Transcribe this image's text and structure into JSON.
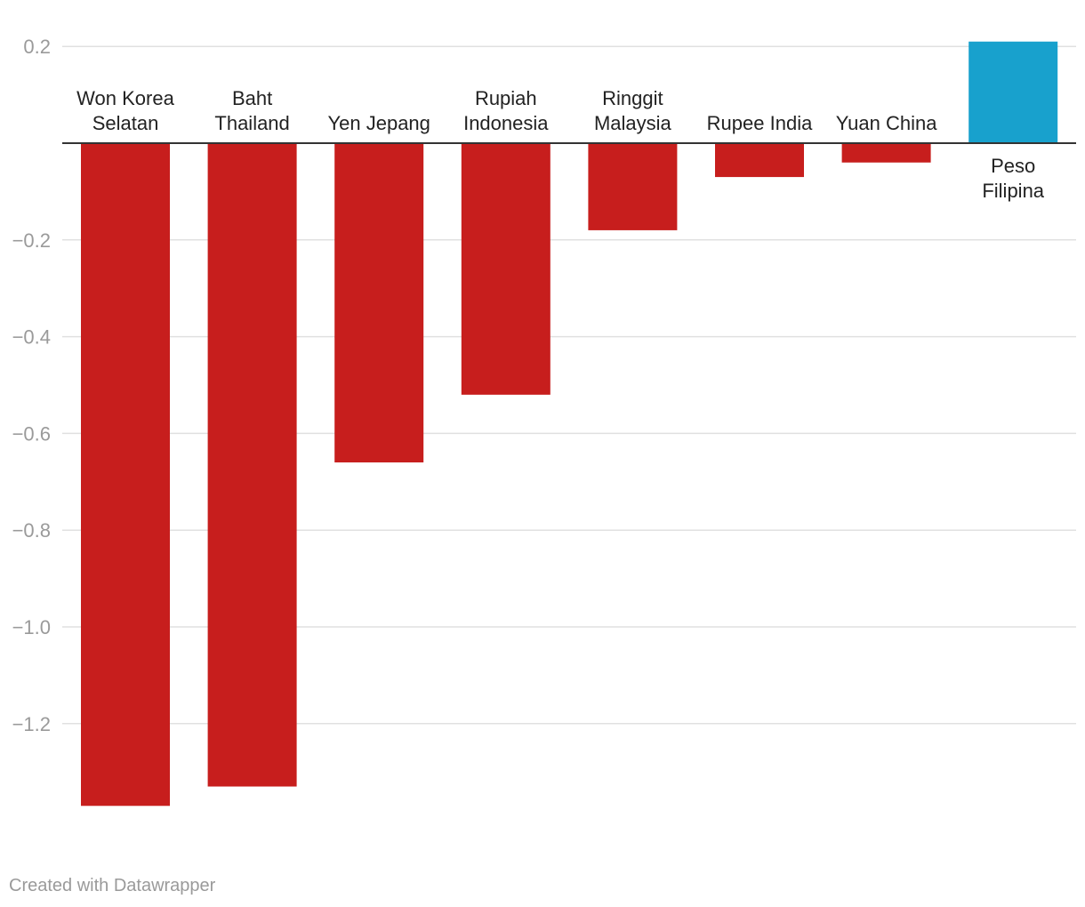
{
  "chart_data": {
    "type": "bar",
    "categories": [
      [
        "Won Korea",
        "Selatan"
      ],
      [
        "Baht",
        "Thailand"
      ],
      [
        "Yen Jepang"
      ],
      [
        "Rupiah",
        "Indonesia"
      ],
      [
        "Ringgit",
        "Malaysia"
      ],
      [
        "Rupee India"
      ],
      [
        "Yuan China"
      ],
      [
        "Peso",
        "Filipina"
      ]
    ],
    "values": [
      -1.37,
      -1.33,
      -0.66,
      -0.52,
      -0.18,
      -0.07,
      -0.04,
      0.21
    ],
    "ylim": [
      -1.37,
      0.21
    ],
    "yticks": [
      0.2,
      -0.2,
      -0.4,
      -0.6,
      -0.8,
      -1.0,
      -1.2
    ],
    "ytick_labels": [
      "0.2",
      "−0.2",
      "−0.4",
      "−0.6",
      "−0.8",
      "−1.0",
      "−1.2"
    ],
    "negative_color": "#c71e1d",
    "positive_color": "#18a1cd",
    "gridline_color": "#e0e0e0",
    "title": "",
    "xlabel": "",
    "ylabel": ""
  },
  "footer": {
    "credit": "Created with Datawrapper"
  }
}
